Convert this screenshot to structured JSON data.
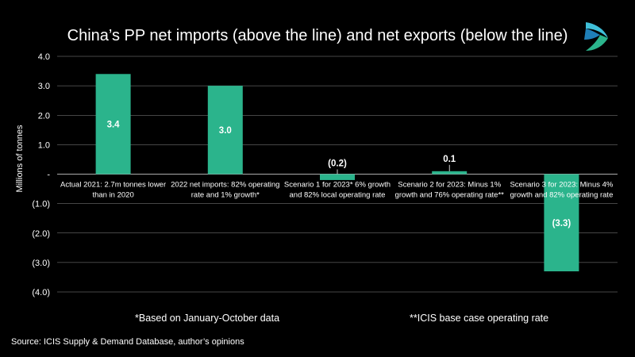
{
  "title": "China’s PP net imports (above the line) and net exports (below the line)",
  "notes": {
    "left": "*Based on  January-October data",
    "right": "**ICIS base case operating rate"
  },
  "source": "Source: ICIS Supply & Demand Database, author’s opinions",
  "logo_icon": "icis-logo-icon",
  "colors": {
    "background": "#000000",
    "bar": "#2bb48c",
    "text": "#ffffff",
    "grid": "#ffffff"
  },
  "chart_data": {
    "type": "bar",
    "ylabel": "Millions of tonnes",
    "ylim": [
      -4,
      4
    ],
    "yticks": [
      4,
      3,
      2,
      1,
      0,
      -1,
      -2,
      -3,
      -4
    ],
    "ytick_labels": [
      "4.0",
      "3.0",
      "2.0",
      "1.0",
      "-",
      "(1.0)",
      "(2.0)",
      "(3.0)",
      "(4.0)"
    ],
    "categories": [
      [
        "Actual 2021: 2.7m tonnes lower",
        "than in 2020"
      ],
      [
        "2022 net imports: 82% operating",
        "rate and 1% growth*"
      ],
      [
        "Scenario 1 for 2023* 6% growth",
        "and 82% local operating rate"
      ],
      [
        "Scenario 2 for 2023: Minus 1%",
        "growth and 76% operating rate**"
      ],
      [
        "Scenario 3 for 2023: Minus 4%",
        "growth and 82% operating rate"
      ]
    ],
    "values": [
      3.4,
      3.0,
      -0.2,
      0.1,
      -3.3
    ],
    "data_labels": [
      "3.4",
      "3.0",
      "(0.2)",
      "0.1",
      "(3.3)"
    ],
    "grid": true,
    "legend": "none"
  }
}
